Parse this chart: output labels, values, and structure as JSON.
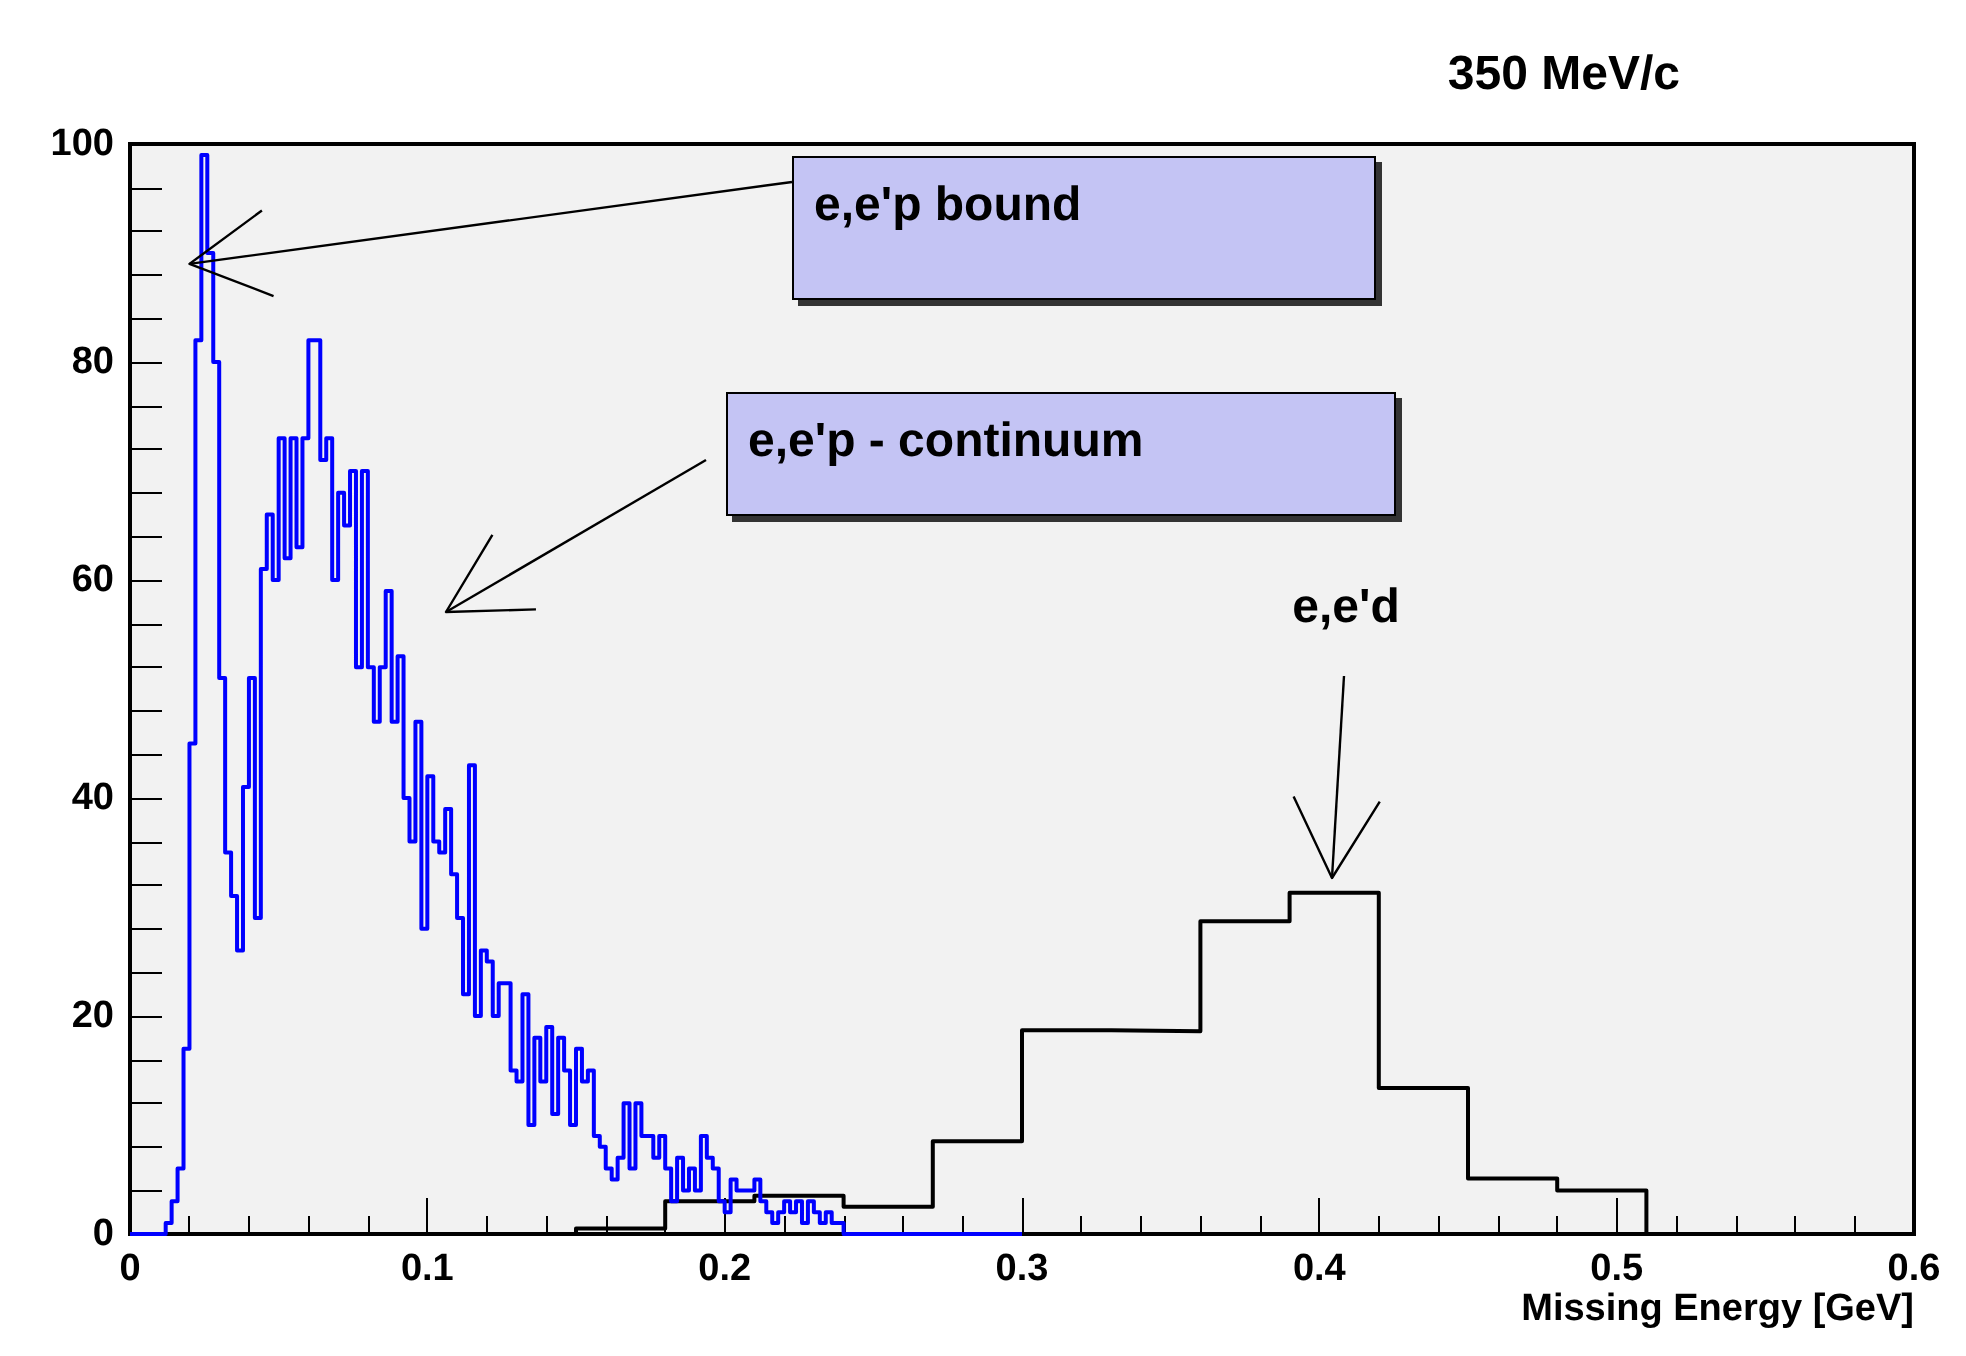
{
  "chart_data": {
    "type": "step",
    "title": "350 MeV/c",
    "xlabel": "Missing Energy [GeV]",
    "xlim": [
      0,
      0.6
    ],
    "xticks": [
      0,
      0.1,
      0.2,
      0.3,
      0.4,
      0.5,
      0.6
    ],
    "ylim": [
      0,
      100
    ],
    "yticks": [
      0,
      20,
      40,
      60,
      80,
      100
    ],
    "grid": false,
    "series": [
      {
        "color": "#0000ff",
        "x": [
          0,
          0.002,
          0.004,
          0.006,
          0.008,
          0.01,
          0.012,
          0.014,
          0.016,
          0.018,
          0.02,
          0.022,
          0.024,
          0.026,
          0.028,
          0.03,
          0.032,
          0.034,
          0.036,
          0.038,
          0.04,
          0.042,
          0.044,
          0.046,
          0.048,
          0.05,
          0.052,
          0.054,
          0.056,
          0.058,
          0.06,
          0.062,
          0.064,
          0.066,
          0.068,
          0.07,
          0.072,
          0.074,
          0.076,
          0.078,
          0.08,
          0.082,
          0.084,
          0.086,
          0.088,
          0.09,
          0.092,
          0.094,
          0.096,
          0.098,
          0.1,
          0.102,
          0.104,
          0.106,
          0.108,
          0.11,
          0.112,
          0.114,
          0.116,
          0.118,
          0.12,
          0.122,
          0.124,
          0.126,
          0.128,
          0.13,
          0.132,
          0.134,
          0.136,
          0.138,
          0.14,
          0.142,
          0.144,
          0.146,
          0.148,
          0.15,
          0.152,
          0.154,
          0.156,
          0.158,
          0.16,
          0.162,
          0.164,
          0.166,
          0.168,
          0.17,
          0.172,
          0.174,
          0.176,
          0.178,
          0.18,
          0.182,
          0.184,
          0.186,
          0.188,
          0.19,
          0.192,
          0.194,
          0.196,
          0.198,
          0.2,
          0.202,
          0.204,
          0.206,
          0.208,
          0.21,
          0.212,
          0.214,
          0.216,
          0.218,
          0.22,
          0.222,
          0.224,
          0.226,
          0.228,
          0.23,
          0.232,
          0.234,
          0.236,
          0.238,
          0.24,
          0.3
        ],
        "values": [
          0,
          0,
          0,
          0,
          0,
          0,
          1,
          3,
          6,
          17,
          45,
          82,
          99,
          90,
          80,
          51,
          35,
          31,
          26,
          41,
          51,
          29,
          61,
          66,
          60,
          73,
          62,
          73,
          63,
          73,
          82,
          82,
          71,
          73,
          60,
          68,
          65,
          70,
          52,
          70,
          52,
          47,
          52,
          59,
          47,
          53,
          40,
          36,
          47,
          28,
          42,
          36,
          35,
          39,
          33,
          29,
          22,
          43,
          20,
          26,
          25,
          20,
          23,
          23,
          15,
          14,
          22,
          10,
          18,
          14,
          19,
          11,
          18,
          15,
          10,
          17,
          14,
          15,
          9,
          8,
          6,
          5,
          7,
          12,
          6,
          12,
          9,
          9,
          7,
          9,
          6,
          3,
          7,
          4,
          6,
          4,
          9,
          7,
          6,
          3,
          2,
          5,
          4,
          4,
          4,
          5,
          3,
          2,
          1,
          2,
          3,
          2,
          3,
          1,
          3,
          2,
          1,
          2,
          1,
          1,
          0,
          0
        ]
      },
      {
        "color": "#000000",
        "x": [
          0,
          0.03,
          0.06,
          0.09,
          0.12,
          0.15,
          0.18,
          0.21,
          0.24,
          0.27,
          0.3,
          0.33,
          0.36,
          0.39,
          0.42,
          0.45,
          0.48,
          0.51,
          0.54,
          0.57,
          0.6
        ],
        "values": [
          0,
          0,
          0,
          0,
          0,
          0.5,
          3,
          3.5,
          2.5,
          8.5,
          18.7,
          18.6,
          28.7,
          31.3,
          13.4,
          5.1,
          4,
          0,
          0,
          0,
          0
        ]
      }
    ],
    "annotations": [
      {
        "text": "e,e'p bound",
        "x": 0.02,
        "y": 89
      },
      "e,e'p - continuum",
      "e,e'd"
    ]
  }
}
